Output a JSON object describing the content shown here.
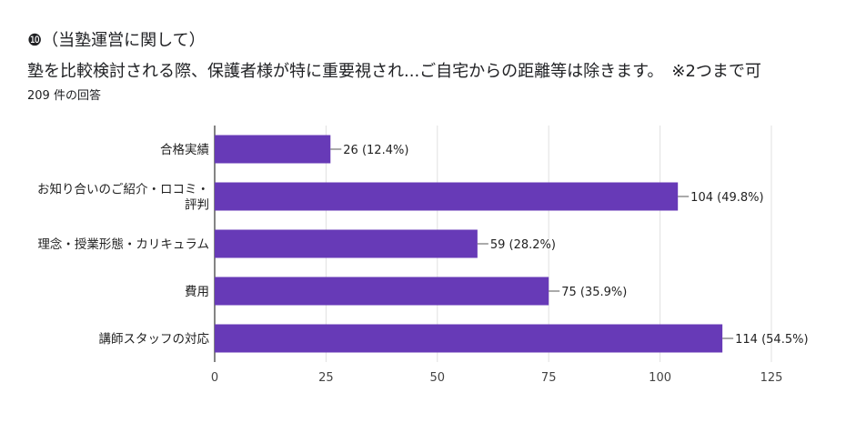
{
  "question": {
    "title": "❿（当塾運営に関して）",
    "text": "塾を比較検討される際、保護者様が特に重要視され...ご自宅からの距離等は除きます。　※2つまで可",
    "response_count": "209 件の回答"
  },
  "chart_data": {
    "type": "bar",
    "orientation": "horizontal",
    "title": "",
    "xlabel": "",
    "ylabel": "",
    "categories": [
      [
        "合格実績"
      ],
      [
        "お知り合いのご紹介・ロコミ・",
        "評判"
      ],
      [
        "理念・授業形態・カリキュラム"
      ],
      [
        "費用"
      ],
      [
        "講師スタッフの対応"
      ]
    ],
    "values": [
      26,
      104,
      59,
      75,
      114
    ],
    "value_labels": [
      "26 (12.4%)",
      "104 (49.8%)",
      "59 (28.2%)",
      "75 (35.9%)",
      "114 (54.5%)"
    ],
    "xlim": [
      0,
      125
    ],
    "xticks": [
      0,
      25,
      50,
      75,
      100,
      125
    ],
    "grid": true,
    "legend": "none",
    "bar_color": "#673ab7"
  }
}
